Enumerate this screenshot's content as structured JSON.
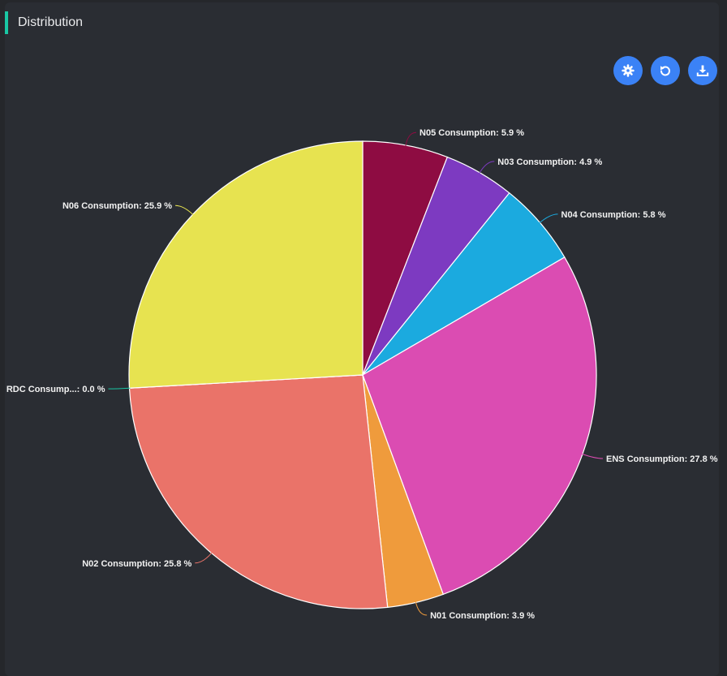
{
  "panel": {
    "title": "Distribution"
  },
  "toolbar": {
    "buttons": [
      {
        "icon": "gear-icon",
        "label": "Settings"
      },
      {
        "icon": "refresh-icon",
        "label": "Reset"
      },
      {
        "icon": "download-icon",
        "label": "Download"
      }
    ]
  },
  "chart_data": {
    "type": "pie",
    "title": "Distribution",
    "unit": "%",
    "slices": [
      {
        "name": "N05 Consumption",
        "value": 5.9,
        "color": "#8e0c42",
        "label": "N05 Consumption: 5.9 %"
      },
      {
        "name": "N03 Consumption",
        "value": 4.9,
        "color": "#7d3ac1",
        "label": "N03 Consumption: 4.9 %"
      },
      {
        "name": "N04 Consumption",
        "value": 5.8,
        "color": "#1baadf",
        "label": "N04 Consumption: 5.8 %"
      },
      {
        "name": "ENS Consumption",
        "value": 27.8,
        "color": "#db4cb2",
        "label": "ENS Consumption: 27.8 %"
      },
      {
        "name": "N01 Consumption",
        "value": 3.9,
        "color": "#ef9b3c",
        "label": "N01 Consumption: 3.9 %"
      },
      {
        "name": "N02 Consumption",
        "value": 25.8,
        "color": "#ea7369",
        "label": "N02 Consumption: 25.8 %"
      },
      {
        "name": "RDC Consumption",
        "value": 0.0,
        "color": "#19c7a4",
        "label": "RDC Consump...: 0.0 %"
      },
      {
        "name": "N06 Consumption",
        "value": 25.9,
        "color": "#e7e350",
        "label": "N06 Consumption: 25.9 %"
      }
    ]
  }
}
